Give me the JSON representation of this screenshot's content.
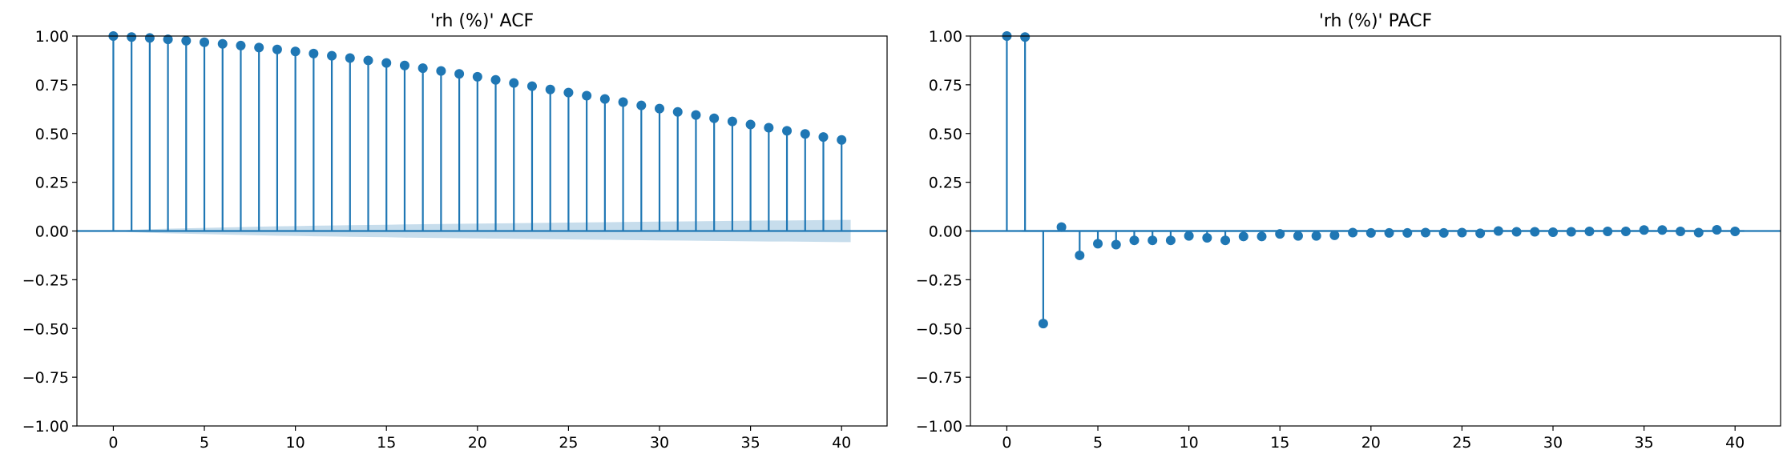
{
  "chart_data": [
    {
      "type": "stem",
      "title": "'rh (%)' ACF",
      "xlabel": "",
      "ylabel": "",
      "xlim": [
        -2,
        42.5
      ],
      "ylim": [
        -1.0,
        1.0
      ],
      "xticks": [
        0,
        5,
        10,
        15,
        20,
        25,
        30,
        35,
        40
      ],
      "xtick_labels": [
        "0",
        "5",
        "10",
        "15",
        "20",
        "25",
        "30",
        "35",
        "40"
      ],
      "yticks": [
        -1.0,
        -0.75,
        -0.5,
        -0.25,
        0.0,
        0.25,
        0.5,
        0.75,
        1.0
      ],
      "ytick_labels": [
        "−1.00",
        "−0.75",
        "−0.50",
        "−0.25",
        "0.00",
        "0.25",
        "0.50",
        "0.75",
        "1.00"
      ],
      "grid": false,
      "x": [
        0,
        1,
        2,
        3,
        4,
        5,
        6,
        7,
        8,
        9,
        10,
        11,
        12,
        13,
        14,
        15,
        16,
        17,
        18,
        19,
        20,
        21,
        22,
        23,
        24,
        25,
        26,
        27,
        28,
        29,
        30,
        31,
        32,
        33,
        34,
        35,
        36,
        37,
        38,
        39,
        40
      ],
      "values": [
        1.0,
        0.995,
        0.99,
        0.983,
        0.976,
        0.968,
        0.96,
        0.951,
        0.941,
        0.931,
        0.921,
        0.91,
        0.899,
        0.887,
        0.875,
        0.862,
        0.849,
        0.835,
        0.821,
        0.806,
        0.791,
        0.775,
        0.759,
        0.743,
        0.726,
        0.71,
        0.694,
        0.677,
        0.661,
        0.644,
        0.628,
        0.611,
        0.595,
        0.578,
        0.562,
        0.546,
        0.53,
        0.514,
        0.498,
        0.482,
        0.467
      ],
      "confidence_band": {
        "x": [
          0,
          1,
          2,
          3,
          4,
          5,
          6,
          7,
          8,
          9,
          10,
          11,
          12,
          13,
          14,
          15,
          16,
          17,
          18,
          19,
          20,
          21,
          22,
          23,
          24,
          25,
          26,
          27,
          28,
          29,
          30,
          31,
          32,
          33,
          34,
          35,
          36,
          37,
          38,
          39,
          40
        ],
        "half_width": [
          0.0,
          0.006,
          0.009,
          0.012,
          0.014,
          0.016,
          0.018,
          0.02,
          0.022,
          0.024,
          0.025,
          0.027,
          0.028,
          0.03,
          0.031,
          0.032,
          0.034,
          0.035,
          0.036,
          0.037,
          0.038,
          0.039,
          0.04,
          0.041,
          0.042,
          0.043,
          0.044,
          0.045,
          0.046,
          0.047,
          0.048,
          0.049,
          0.05,
          0.051,
          0.052,
          0.053,
          0.054,
          0.054,
          0.055,
          0.056,
          0.057
        ]
      }
    },
    {
      "type": "stem",
      "title": "'rh (%)' PACF",
      "xlabel": "",
      "ylabel": "",
      "xlim": [
        -2,
        42.5
      ],
      "ylim": [
        -1.0,
        1.0
      ],
      "xticks": [
        0,
        5,
        10,
        15,
        20,
        25,
        30,
        35,
        40
      ],
      "xtick_labels": [
        "0",
        "5",
        "10",
        "15",
        "20",
        "25",
        "30",
        "35",
        "40"
      ],
      "yticks": [
        -1.0,
        -0.75,
        -0.5,
        -0.25,
        0.0,
        0.25,
        0.5,
        0.75,
        1.0
      ],
      "ytick_labels": [
        "−1.00",
        "−0.75",
        "−0.50",
        "−0.25",
        "0.00",
        "0.25",
        "0.50",
        "0.75",
        "1.00"
      ],
      "grid": false,
      "x": [
        0,
        1,
        2,
        3,
        4,
        5,
        6,
        7,
        8,
        9,
        10,
        11,
        12,
        13,
        14,
        15,
        16,
        17,
        18,
        19,
        20,
        21,
        22,
        23,
        24,
        25,
        26,
        27,
        28,
        29,
        30,
        31,
        32,
        33,
        34,
        35,
        36,
        37,
        38,
        39,
        40
      ],
      "values": [
        1.0,
        0.995,
        -0.475,
        0.02,
        -0.125,
        -0.065,
        -0.07,
        -0.048,
        -0.048,
        -0.048,
        -0.025,
        -0.035,
        -0.048,
        -0.028,
        -0.028,
        -0.015,
        -0.025,
        -0.025,
        -0.022,
        -0.008,
        -0.01,
        -0.01,
        -0.01,
        -0.008,
        -0.01,
        -0.008,
        -0.012,
        0.0,
        -0.004,
        -0.004,
        -0.006,
        -0.004,
        -0.002,
        -0.002,
        -0.002,
        0.005,
        0.005,
        -0.002,
        -0.008,
        0.006,
        -0.002
      ],
      "confidence_band": {
        "x": [
          0,
          1,
          2,
          3,
          4,
          5,
          6,
          7,
          8,
          9,
          10,
          11,
          12,
          13,
          14,
          15,
          16,
          17,
          18,
          19,
          20,
          21,
          22,
          23,
          24,
          25,
          26,
          27,
          28,
          29,
          30,
          31,
          32,
          33,
          34,
          35,
          36,
          37,
          38,
          39,
          40
        ],
        "half_width": [
          0.0,
          0.006,
          0.006,
          0.006,
          0.006,
          0.006,
          0.006,
          0.006,
          0.006,
          0.006,
          0.006,
          0.006,
          0.006,
          0.006,
          0.006,
          0.006,
          0.006,
          0.006,
          0.006,
          0.006,
          0.006,
          0.006,
          0.006,
          0.006,
          0.006,
          0.006,
          0.006,
          0.006,
          0.006,
          0.006,
          0.006,
          0.006,
          0.006,
          0.006,
          0.006,
          0.006,
          0.006,
          0.006,
          0.006,
          0.006,
          0.006
        ]
      }
    }
  ],
  "colors": {
    "stem": "#1f77b4",
    "band": "#1f77b4",
    "axis": "#000000"
  }
}
